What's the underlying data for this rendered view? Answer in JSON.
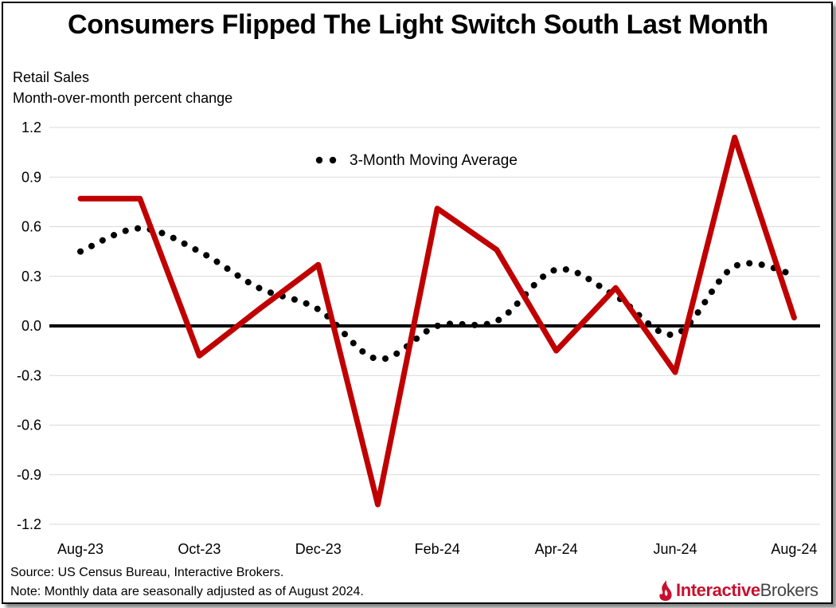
{
  "title": "Consumers Flipped The Light Switch South Last Month",
  "subtitle_lines": [
    "Retail Sales",
    "Month-over-month percent change"
  ],
  "footnotes": {
    "source": "Source: US Census Bureau, Interactive Brokers.",
    "note": "Note: Monthly data are seasonally adjusted as of August 2024."
  },
  "logo": {
    "part1": "Interactive",
    "part2": "Brokers"
  },
  "colors": {
    "line": "#c00000",
    "moving_average": "#000000",
    "grid": "#d9d9d9",
    "zero_line": "#000000",
    "logo_red": "#c8102e"
  },
  "chart_data": {
    "type": "line",
    "categories": [
      "Aug-23",
      "Sep-23",
      "Oct-23",
      "Nov-23",
      "Dec-23",
      "Jan-24",
      "Feb-24",
      "Mar-24",
      "Apr-24",
      "May-24",
      "Jun-24",
      "Jul-24",
      "Aug-24"
    ],
    "x_tick_labels": [
      "Aug-23",
      "Oct-23",
      "Dec-23",
      "Feb-24",
      "Apr-24",
      "Jun-24",
      "Aug-24"
    ],
    "series": [
      {
        "values": [
          0.77,
          0.77,
          -0.18,
          0.1,
          0.37,
          -1.08,
          0.71,
          0.46,
          -0.15,
          0.23,
          -0.28,
          1.14,
          0.05
        ],
        "style": "solid"
      },
      {
        "name": "3-Month Moving Average",
        "values": [
          0.45,
          0.59,
          0.45,
          0.23,
          0.1,
          -0.2,
          0.0,
          0.03,
          0.34,
          0.18,
          -0.05,
          0.36,
          0.31
        ],
        "style": "dotted"
      }
    ],
    "y_ticks": [
      1.2,
      0.9,
      0.6,
      0.3,
      0.0,
      -0.3,
      -0.6,
      -0.9,
      -1.2
    ],
    "y_tick_labels": [
      "1.2",
      "0.9",
      "0.6",
      "0.3",
      "0.0",
      "-0.3",
      "-0.6",
      "-0.9",
      "-1.2"
    ],
    "ylim": [
      -1.2,
      1.2
    ],
    "grid": true,
    "legend": {
      "position": "top-center"
    }
  }
}
